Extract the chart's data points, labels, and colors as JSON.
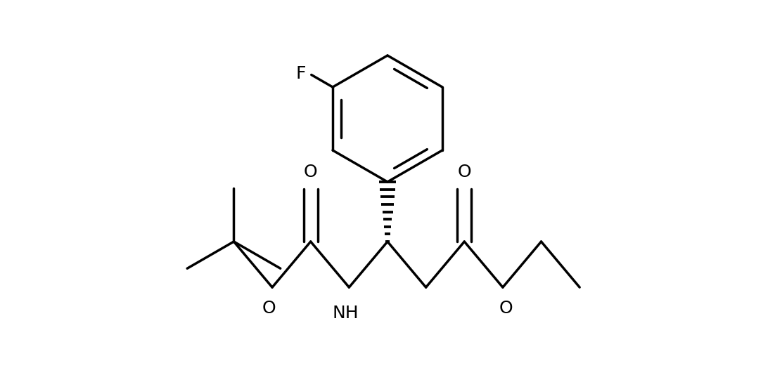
{
  "background_color": "#ffffff",
  "line_color": "#000000",
  "lw": 2.5,
  "fs": 16,
  "fig_width": 11.02,
  "fig_height": 5.24,
  "dpi": 100,
  "xlim": [
    0,
    11.02
  ],
  "ylim": [
    0,
    5.24
  ]
}
